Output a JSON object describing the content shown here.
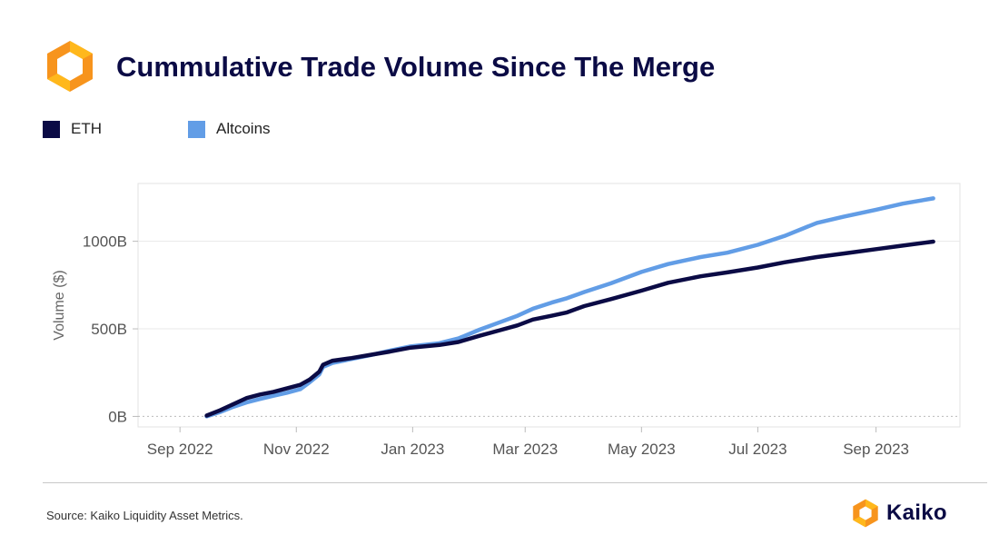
{
  "header": {
    "title": "Cummulative Trade Volume Since The Merge"
  },
  "footer": {
    "source": "Source: Kaiko Liquidity Asset Metrics.",
    "brand": "Kaiko"
  },
  "colors": {
    "title": "#0b0b45",
    "eth": "#0b0b45",
    "altcoins": "#629de6",
    "logo_orange": "#f7941d",
    "logo_yellow": "#ffb81c",
    "grid": "#e8e8e8",
    "zero_line": "#bbbbbb"
  },
  "chart_data": {
    "type": "line",
    "title": "Cummulative Trade Volume Since The Merge",
    "xlabel": "",
    "ylabel": "Volume ($)",
    "x_tick_labels": [
      "Sep 2022",
      "Nov 2022",
      "Jan 2023",
      "Mar 2023",
      "May 2023",
      "Jul 2023",
      "Sep 2023"
    ],
    "x_tick_dates": [
      "2022-09-01",
      "2022-11-01",
      "2023-01-01",
      "2023-03-01",
      "2023-05-01",
      "2023-07-01",
      "2023-09-01"
    ],
    "y_tick_labels": [
      "0B",
      "500B",
      "1000B"
    ],
    "y_tick_values": [
      0,
      500,
      1000
    ],
    "x_range": [
      "2022-08-10",
      "2023-10-15"
    ],
    "ylim": [
      -60,
      1330
    ],
    "y_unit": "B",
    "grid": "horizontal",
    "legend_position": "top-left",
    "series": [
      {
        "name": "ETH",
        "color": "#0b0b45",
        "points": [
          [
            "2022-09-15",
            5
          ],
          [
            "2022-09-22",
            35
          ],
          [
            "2022-09-29",
            70
          ],
          [
            "2022-10-06",
            105
          ],
          [
            "2022-10-13",
            125
          ],
          [
            "2022-10-20",
            140
          ],
          [
            "2022-10-27",
            160
          ],
          [
            "2022-11-03",
            180
          ],
          [
            "2022-11-08",
            210
          ],
          [
            "2022-11-13",
            255
          ],
          [
            "2022-11-15",
            295
          ],
          [
            "2022-11-20",
            318
          ],
          [
            "2022-11-30",
            333
          ],
          [
            "2022-12-10",
            352
          ],
          [
            "2022-12-20",
            370
          ],
          [
            "2022-12-31",
            393
          ],
          [
            "2023-01-15",
            408
          ],
          [
            "2023-01-25",
            425
          ],
          [
            "2023-02-05",
            460
          ],
          [
            "2023-02-15",
            490
          ],
          [
            "2023-02-25",
            520
          ],
          [
            "2023-03-05",
            553
          ],
          [
            "2023-03-15",
            575
          ],
          [
            "2023-03-23",
            594
          ],
          [
            "2023-04-01",
            630
          ],
          [
            "2023-04-15",
            670
          ],
          [
            "2023-05-01",
            718
          ],
          [
            "2023-05-15",
            763
          ],
          [
            "2023-06-01",
            800
          ],
          [
            "2023-06-15",
            822
          ],
          [
            "2023-07-01",
            850
          ],
          [
            "2023-07-15",
            880
          ],
          [
            "2023-08-01",
            910
          ],
          [
            "2023-08-15",
            930
          ],
          [
            "2023-09-01",
            955
          ],
          [
            "2023-09-15",
            975
          ],
          [
            "2023-10-01",
            998
          ]
        ]
      },
      {
        "name": "Altcoins",
        "color": "#629de6",
        "points": [
          [
            "2022-09-15",
            0
          ],
          [
            "2022-09-22",
            25
          ],
          [
            "2022-09-29",
            55
          ],
          [
            "2022-10-06",
            80
          ],
          [
            "2022-10-13",
            100
          ],
          [
            "2022-10-20",
            118
          ],
          [
            "2022-10-27",
            135
          ],
          [
            "2022-11-03",
            155
          ],
          [
            "2022-11-08",
            195
          ],
          [
            "2022-11-13",
            240
          ],
          [
            "2022-11-15",
            283
          ],
          [
            "2022-11-20",
            305
          ],
          [
            "2022-11-30",
            328
          ],
          [
            "2022-12-10",
            350
          ],
          [
            "2022-12-20",
            375
          ],
          [
            "2022-12-31",
            400
          ],
          [
            "2023-01-15",
            418
          ],
          [
            "2023-01-25",
            445
          ],
          [
            "2023-02-05",
            495
          ],
          [
            "2023-02-15",
            535
          ],
          [
            "2023-02-25",
            575
          ],
          [
            "2023-03-05",
            615
          ],
          [
            "2023-03-15",
            650
          ],
          [
            "2023-03-23",
            675
          ],
          [
            "2023-04-01",
            710
          ],
          [
            "2023-04-15",
            760
          ],
          [
            "2023-05-01",
            825
          ],
          [
            "2023-05-15",
            870
          ],
          [
            "2023-06-01",
            910
          ],
          [
            "2023-06-15",
            935
          ],
          [
            "2023-07-01",
            980
          ],
          [
            "2023-07-15",
            1030
          ],
          [
            "2023-08-01",
            1105
          ],
          [
            "2023-08-15",
            1140
          ],
          [
            "2023-09-01",
            1180
          ],
          [
            "2023-09-15",
            1215
          ],
          [
            "2023-10-01",
            1245
          ]
        ]
      }
    ]
  }
}
